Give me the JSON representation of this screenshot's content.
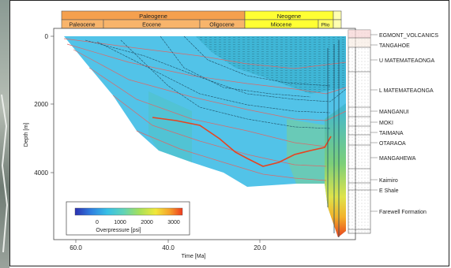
{
  "figure": {
    "y_axis_label": "Depth [m]",
    "x_axis_label": "Time [Ma]",
    "y_ticks": [
      "0",
      "2000",
      "4000"
    ],
    "x_ticks": [
      "60.0",
      "40.0",
      "20.0"
    ],
    "period_labels": [
      "Paleogene",
      "Neogene"
    ],
    "epoch_labels": [
      "Paleocene",
      "Eocene",
      "Oligocene",
      "Miocene",
      "Plio"
    ]
  },
  "legend": {
    "title": "Overpressure [psi]",
    "tick_labels": [
      "0",
      "1000",
      "2000",
      "3000"
    ],
    "colors": [
      "#2b2fb0",
      "#2f7fe0",
      "#36c0e6",
      "#5fd3b8",
      "#a6e05a",
      "#f1e83a",
      "#f6a22a",
      "#ee3a1f"
    ]
  },
  "formations": [
    "EGMONT_VOLCANICS",
    "TANGAHOE",
    "U MATEMATEAONGA",
    "L MATEMATEAONGA",
    "MANGANUI",
    "MOKI",
    "TAIMANA",
    "OTARAOA",
    "MANGAHEWA",
    "Kaimiro",
    "E Shale",
    "Farewell Formation"
  ],
  "colors": {
    "basin_fill": "#52c3e8",
    "upper_fill": "#3fb6d6",
    "high_pressure": "#e8431f",
    "period_header": "#f5a04e",
    "neogene_header": "#ffff33",
    "stripe_red": "#d96a6a"
  }
}
